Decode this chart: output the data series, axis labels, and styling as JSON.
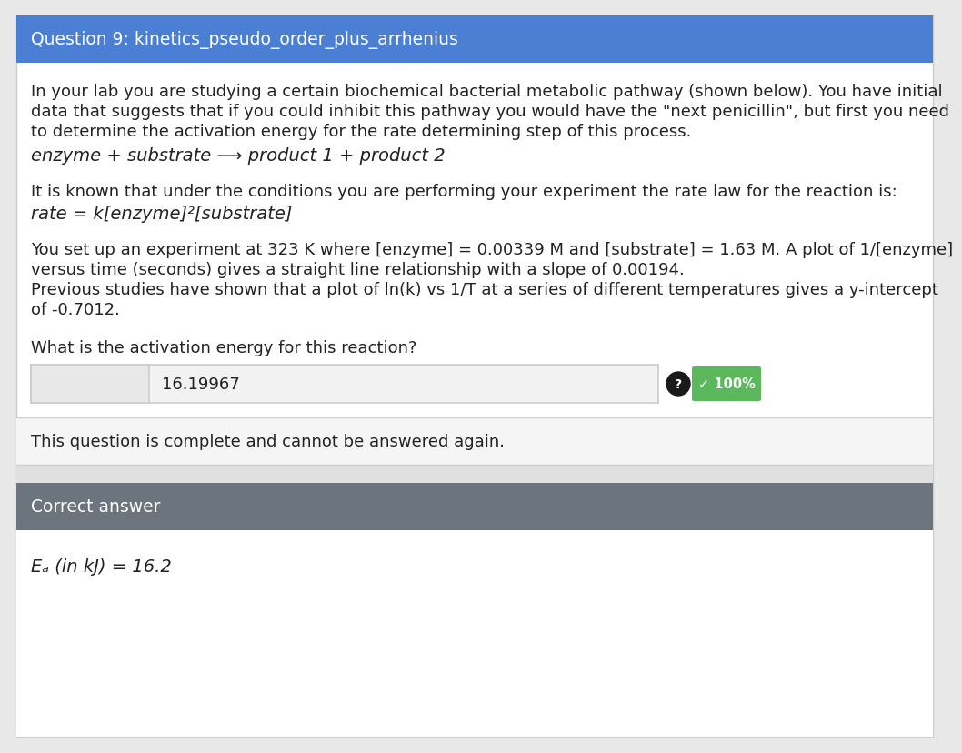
{
  "title": "Question 9: kinetics_pseudo_order_plus_arrhenius",
  "title_bg": "#4a7fd4",
  "title_color": "#ffffff",
  "title_fontsize": 13.5,
  "body_bg": "#ffffff",
  "body_fontsize": 13.0,
  "paragraph1_line1": "In your lab you are studying a certain biochemical bacterial metabolic pathway (shown below). You have initial",
  "paragraph1_line2": "data that suggests that if you could inhibit this pathway you would have the \"next penicillin\", but first you need",
  "paragraph1_line3": "to determine the activation energy for the rate determining step of this process.",
  "equation1": "enzyme + substrate ⟶ product 1 + product 2",
  "paragraph2": "It is known that under the conditions you are performing your experiment the rate law for the reaction is:",
  "equation2": "rate = k[enzyme]²[substrate]",
  "paragraph3_line1": "You set up an experiment at 323 K where [enzyme] = 0.00339 M and [substrate] = 1.63 M. A plot of 1/[enzyme]",
  "paragraph3_line2": "versus time (seconds) gives a straight line relationship with a slope of 0.00194.",
  "paragraph3_line3": "Previous studies have shown that a plot of ln(k) vs 1/T at a series of different temperatures gives a y-intercept",
  "paragraph3_line4": "of -0.7012.",
  "question": "What is the activation energy for this reaction?",
  "answer_label": "Eₐ (in kJ) =",
  "answer_value": "16.19967",
  "answer_box_bg": "#f2f2f2",
  "answer_label_bg": "#e8e8e8",
  "answer_border": "#cccccc",
  "badge_bg": "#5cb85c",
  "badge_text": "✓ 100%",
  "badge_color": "#ffffff",
  "question_mark_bg": "#1a1a1a",
  "completion_text": "This question is complete and cannot be answered again.",
  "completion_bg": "#f5f5f5",
  "completion_border": "#d0d0d0",
  "correct_header": "Correct answer",
  "correct_header_bg": "#6c757d",
  "correct_header_color": "#ffffff",
  "correct_answer": "Eₐ (in kJ) = 16.2",
  "correct_bg": "#ffffff",
  "outer_border": "#cccccc"
}
